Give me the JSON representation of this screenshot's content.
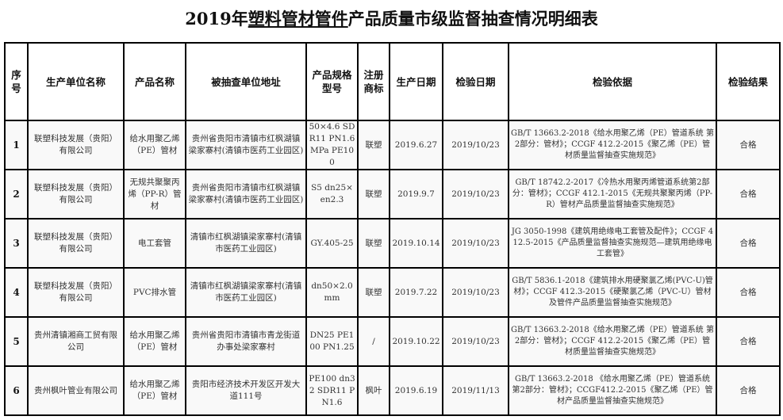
{
  "title": {
    "year": "2019年",
    "category": "塑料管材管件",
    "rest": "产品质量市级监督抽查情况明细表"
  },
  "columns": [
    "序号",
    "生产单位名称",
    "产品名称",
    "被抽查单位地址",
    "产品规格型号",
    "注册商标",
    "生产日期",
    "检验日期",
    "检验依据",
    "检验结果"
  ],
  "rows": [
    {
      "seq": "1",
      "manufacturer": "联塑科技发展（贵阳）有限公司",
      "product": "给水用聚乙烯（PE）管材",
      "address": "贵州省贵阳市清镇市红枫湖镇梁家寨村(清镇市医药工业园区)",
      "spec": "50×4.6 SDR11 PN1.6MPa PE100",
      "trademark": "联塑",
      "production_date": "2019.6.27",
      "inspection_date": "2019/10/23",
      "basis": "GB/T 13663.2-2018《给水用聚乙烯（PE）管道系统 第2部分：管材》；CCGF 412.2-2015《聚乙烯（PE）管材质量监督抽查实施规范》",
      "result": "合格"
    },
    {
      "seq": "2",
      "manufacturer": "联塑科技发展（贵阳）有限公司",
      "product": "无规共聚聚丙烯（PP-R）管材",
      "address": "贵州省贵阳市清镇市红枫湖镇梁家寨村(清镇市医药工业园区)",
      "spec": "S5 dn25×en2.3",
      "trademark": "联塑",
      "production_date": "2019.9.7",
      "inspection_date": "2019/10/23",
      "basis": "GB/T 18742.2-2017《冷热水用聚丙烯管道系统第2部分：管材》；CCGF 412.1-2015《无规共聚聚丙烯（PP-R）管材产品质量监督抽查实施规范》",
      "result": "合格"
    },
    {
      "seq": "3",
      "manufacturer": "联塑科技发展（贵阳）有限公司",
      "product": "电工套管",
      "address": "清镇市红枫湖镇梁家寨村(清镇市医药工业园区)",
      "spec": "GY.405-25",
      "trademark": "联塑",
      "production_date": "2019.10.14",
      "inspection_date": "2019/10/23",
      "basis": "JG 3050-1998《建筑用绝缘电工套管及配件》；CCGF 412.5-2015《产品质量监督抽查实施规范—建筑用绝缘电工套管》",
      "result": "合格"
    },
    {
      "seq": "4",
      "manufacturer": "联塑科技发展（贵阳）有限公司",
      "product": "PVC排水管",
      "address": "清镇市红枫湖镇梁家寨村(清镇市医药工业园区)",
      "spec": "dn50×2.0mm",
      "trademark": "联塑",
      "production_date": "2019.7.22",
      "inspection_date": "2019/10/23",
      "basis": "GB/T 5836.1-2018《建筑排水用硬聚氯乙烯(PVC-U)管材》；CCGF 412.3-2015《硬聚氯乙烯（PVC-U）管材及管件产品质量监督抽查实施规范》",
      "result": "合格"
    },
    {
      "seq": "5",
      "manufacturer": "贵州清镇湘商工贸有限公司",
      "product": "给水用聚乙烯（PE）管材",
      "address": "贵州省贵阳市清镇市青龙街道办事处梁家寨村",
      "spec": "DN25 PE100 PN1.25",
      "trademark": "/",
      "production_date": "2019.10.22",
      "inspection_date": "2019/10/23",
      "basis": "GB/T 13663.2-2018《给水用聚乙烯（PE）管道系统 第2部分：管材》；CCGF 412.2-2015《聚乙烯（PE）管材质量监督抽查实施规范》",
      "result": "合格"
    },
    {
      "seq": "6",
      "manufacturer": "贵州枫叶管业有限公司",
      "product": "给水用聚乙烯（PE）管材",
      "address": "贵阳市经济技术开发区开发大道111号",
      "spec": "PE100 dn32 SDR11 PN1.6",
      "trademark": "枫叶",
      "production_date": "2019.6.19",
      "inspection_date": "2019/11/13",
      "basis": "GB/T 13663.2-2018 《给水用聚乙烯（PE）管道系统 第2部分：管材》；CCGF412.2-2015《聚乙烯（PE）管材产品质量监督抽查实施规范》",
      "result": "合格"
    }
  ]
}
